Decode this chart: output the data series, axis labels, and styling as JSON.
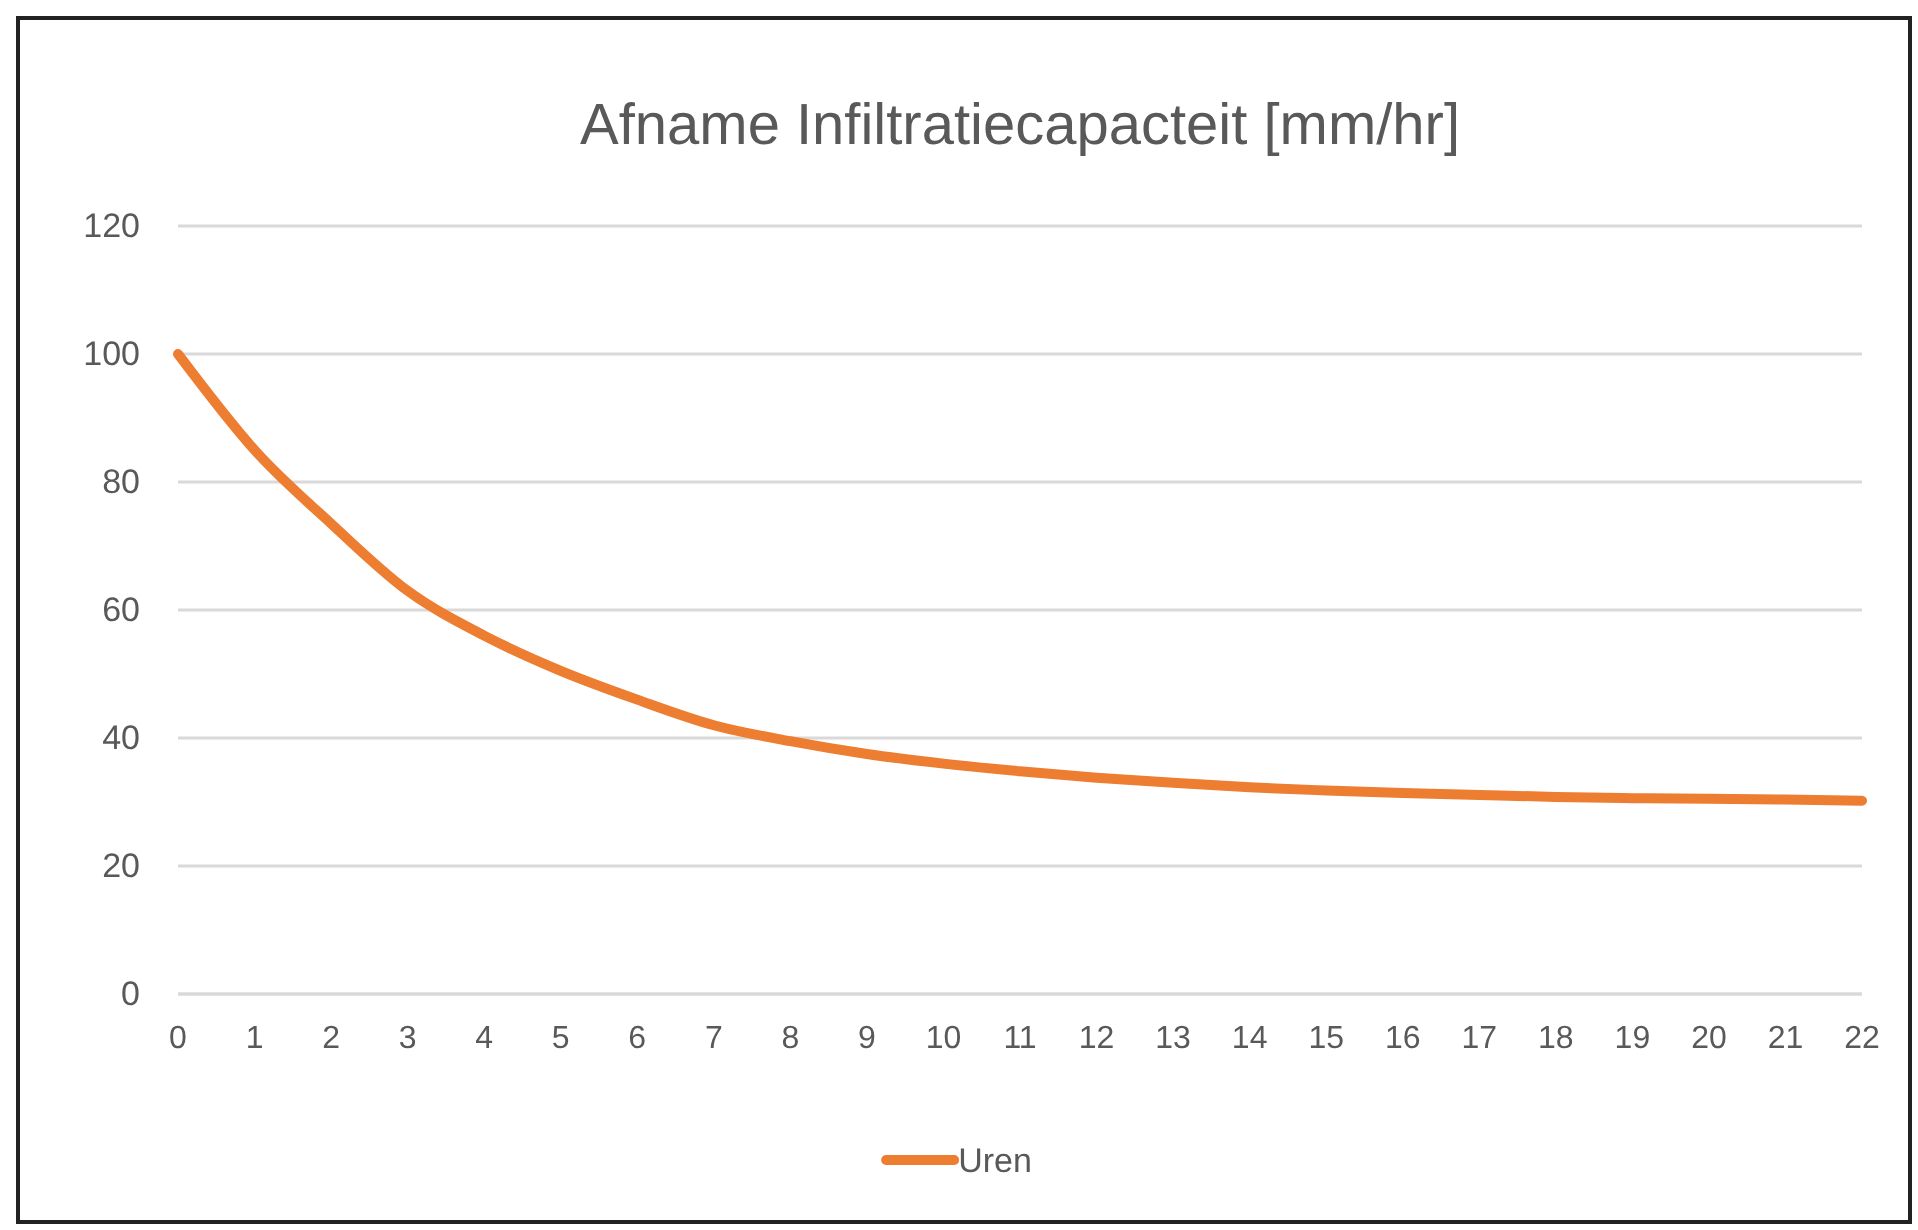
{
  "chart_data": {
    "type": "line",
    "title": "Afname Infiltratiecapacteit [mm/hr]",
    "x": [
      0,
      1,
      2,
      3,
      4,
      5,
      6,
      7,
      8,
      9,
      10,
      11,
      12,
      13,
      14,
      15,
      16,
      17,
      18,
      19,
      20,
      21,
      22
    ],
    "series": [
      {
        "name": "Uren",
        "color": "#ed7d31",
        "values": [
          100,
          85,
          73.5,
          63,
          56,
          50.5,
          46,
          42,
          39.5,
          37.5,
          36,
          34.8,
          33.8,
          33,
          32.3,
          31.8,
          31.4,
          31.1,
          30.8,
          30.6,
          30.5,
          30.4,
          30.2
        ]
      }
    ],
    "xlim": [
      0,
      22
    ],
    "xticks": [
      0,
      1,
      2,
      3,
      4,
      5,
      6,
      7,
      8,
      9,
      10,
      11,
      12,
      13,
      14,
      15,
      16,
      17,
      18,
      19,
      20,
      21,
      22
    ],
    "ylim": [
      0,
      120
    ],
    "yticks": [
      0,
      20,
      40,
      60,
      80,
      100,
      120
    ],
    "grid": "y",
    "legend": "bottom",
    "marker": "none",
    "line_style": "solid"
  }
}
